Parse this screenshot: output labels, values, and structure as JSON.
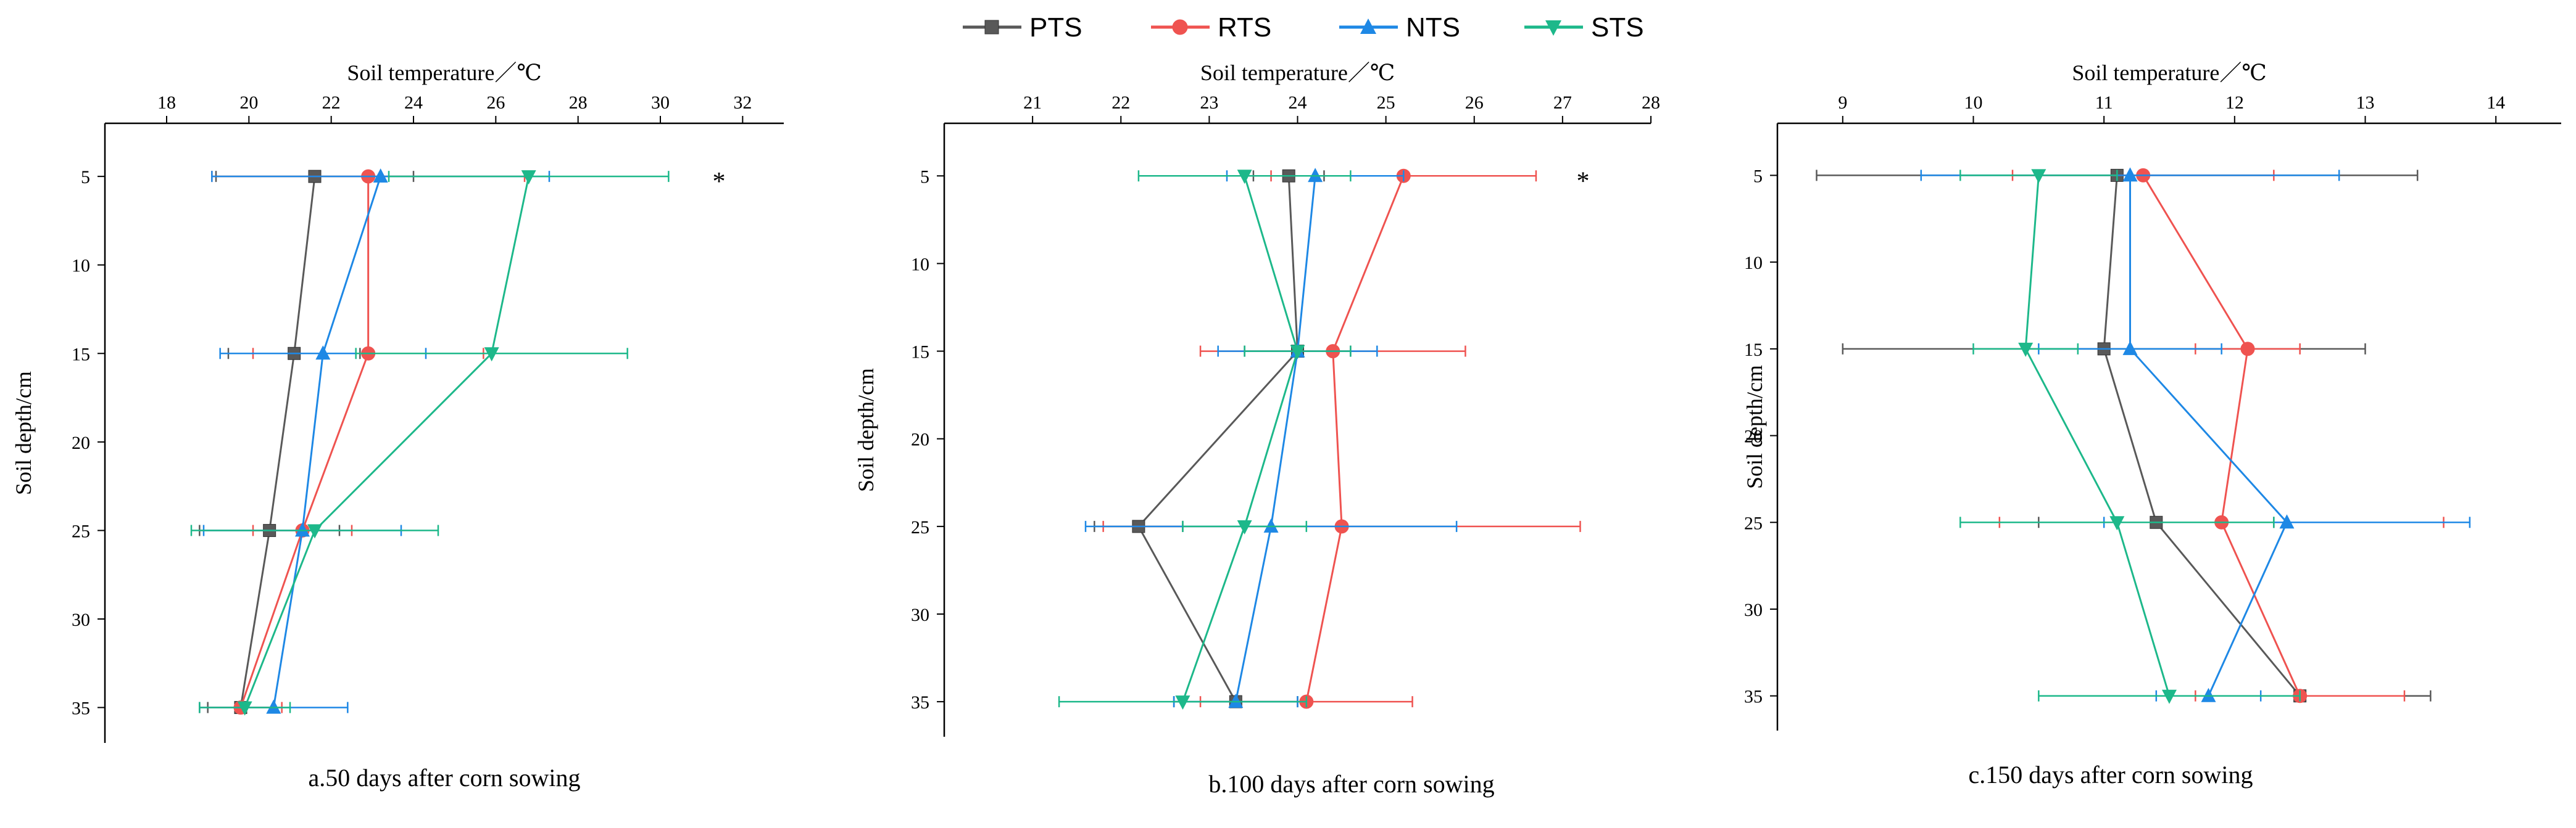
{
  "legend": [
    {
      "name": "PTS",
      "color": "#595959",
      "marker": "square"
    },
    {
      "name": "RTS",
      "color": "#ef5350",
      "marker": "circle"
    },
    {
      "name": "NTS",
      "color": "#1e88e5",
      "marker": "triangle-up"
    },
    {
      "name": "STS",
      "color": "#1db88a",
      "marker": "triangle-down"
    }
  ],
  "chart_data": [
    {
      "type": "line",
      "caption": "a.50 days after corn sowing",
      "xlabel": "Soil temperature／℃",
      "ylabel": "Soil depth/cm",
      "xlim": [
        16.5,
        33.0
      ],
      "xticks": [
        18,
        20,
        22,
        24,
        26,
        28,
        30,
        32
      ],
      "ylim": [
        2,
        37
      ],
      "yticks": [
        5,
        10,
        15,
        20,
        25,
        30,
        35
      ],
      "depths": [
        5,
        15,
        25,
        35
      ],
      "series": [
        {
          "name": "PTS",
          "values": [
            21.6,
            21.1,
            20.5,
            19.8
          ],
          "err": [
            2.4,
            1.6,
            1.7,
            0.8
          ]
        },
        {
          "name": "RTS",
          "values": [
            22.9,
            22.9,
            21.3,
            19.8
          ],
          "err": [
            3.8,
            2.8,
            1.2,
            1.0
          ]
        },
        {
          "name": "NTS",
          "values": [
            23.2,
            21.8,
            21.3,
            20.6
          ],
          "err": [
            4.1,
            2.5,
            2.4,
            1.8
          ]
        },
        {
          "name": "STS",
          "values": [
            26.8,
            25.9,
            21.6,
            19.9
          ],
          "err": [
            3.4,
            3.3,
            3.0,
            1.1
          ]
        }
      ],
      "annotations": [
        {
          "text": "*",
          "depth": 5
        }
      ]
    },
    {
      "type": "line",
      "caption": "b.100 days after corn sowing",
      "xlabel": "Soil temperature／℃",
      "ylabel": "Soil depth/cm",
      "xlim": [
        20.0,
        28.0
      ],
      "xticks": [
        21,
        22,
        23,
        24,
        25,
        26,
        27,
        28
      ],
      "ylim": [
        2,
        37
      ],
      "yticks": [
        5,
        10,
        15,
        20,
        25,
        30,
        35
      ],
      "depths": [
        5,
        15,
        25,
        35
      ],
      "series": [
        {
          "name": "PTS",
          "values": [
            23.9,
            24.0,
            22.2,
            23.3
          ],
          "err": [
            0.4,
            0.6,
            0.5,
            0.7
          ]
        },
        {
          "name": "RTS",
          "values": [
            25.2,
            24.4,
            24.5,
            24.1
          ],
          "err": [
            1.5,
            1.5,
            2.7,
            1.2
          ]
        },
        {
          "name": "NTS",
          "values": [
            24.2,
            24.0,
            23.7,
            23.3
          ],
          "err": [
            1.0,
            0.9,
            2.1,
            0.7
          ]
        },
        {
          "name": "STS",
          "values": [
            23.4,
            24.0,
            23.4,
            22.7
          ],
          "err": [
            1.2,
            0.6,
            0.7,
            1.4
          ]
        }
      ],
      "annotations": [
        {
          "text": "*",
          "depth": 5
        }
      ]
    },
    {
      "type": "line",
      "caption": "c.150 days after corn sowing",
      "xlabel": "Soil temperature／℃",
      "ylabel": "Soil depth/cm",
      "xlim": [
        8.5,
        14.5
      ],
      "xticks": [
        9,
        10,
        11,
        12,
        13,
        14
      ],
      "ylim": [
        2,
        37
      ],
      "yticks": [
        5,
        10,
        15,
        20,
        25,
        30,
        35
      ],
      "depths": [
        5,
        15,
        25,
        35
      ],
      "series": [
        {
          "name": "PTS",
          "values": [
            11.1,
            11.0,
            11.4,
            12.5
          ],
          "err": [
            2.3,
            2.0,
            0.9,
            1.0
          ]
        },
        {
          "name": "RTS",
          "values": [
            11.3,
            12.1,
            11.9,
            12.5
          ],
          "err": [
            1.0,
            0.4,
            1.7,
            0.8
          ]
        },
        {
          "name": "NTS",
          "values": [
            11.2,
            11.2,
            12.4,
            11.8
          ],
          "err": [
            1.6,
            0.7,
            1.4,
            0.4
          ]
        },
        {
          "name": "STS",
          "values": [
            10.5,
            10.4,
            11.1,
            11.5
          ],
          "err": [
            0.6,
            0.4,
            1.2,
            1.0
          ]
        }
      ],
      "annotations": []
    }
  ]
}
